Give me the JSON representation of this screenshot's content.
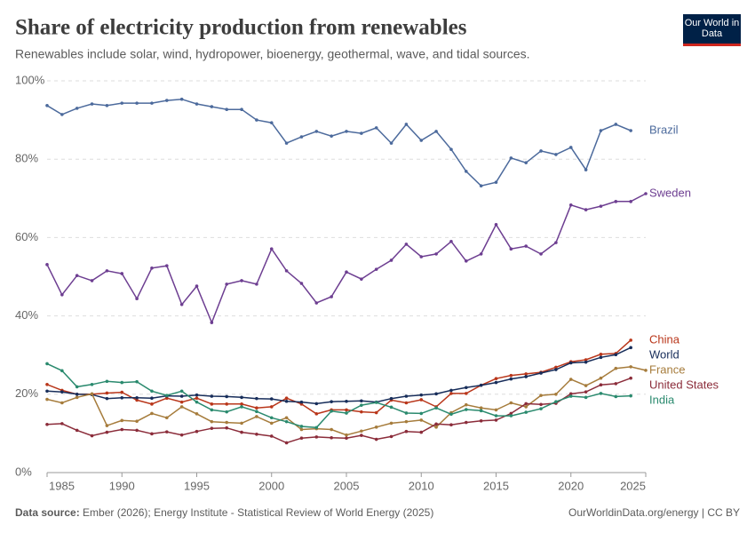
{
  "chart_data": {
    "type": "line",
    "title": "Share of electricity production from renewables",
    "subtitle": "Renewables include solar, wind, hydropower, bioenergy, geothermal, wave, and tidal sources.",
    "logo": "Our World in Data",
    "source_label": "Data source:",
    "source": "Ember (2026); Energy Institute - Statistical Review of World Energy (2025)",
    "footer_right": "OurWorldinData.org/energy | CC BY",
    "x": [
      1985,
      1986,
      1987,
      1988,
      1989,
      1990,
      1991,
      1992,
      1993,
      1994,
      1995,
      1996,
      1997,
      1998,
      1999,
      2000,
      2001,
      2002,
      2003,
      2004,
      2005,
      2006,
      2007,
      2008,
      2009,
      2010,
      2011,
      2012,
      2013,
      2014,
      2015,
      2016,
      2017,
      2018,
      2019,
      2020,
      2021,
      2022,
      2023,
      2024,
      2025
    ],
    "xlim": [
      1985,
      2025
    ],
    "xticks": [
      1985,
      1990,
      1995,
      2000,
      2005,
      2010,
      2015,
      2020,
      2025
    ],
    "ylim": [
      0,
      100
    ],
    "yticks": [
      {
        "value": 0,
        "label": "0%"
      },
      {
        "value": 20,
        "label": "20%"
      },
      {
        "value": 40,
        "label": "40%"
      },
      {
        "value": 60,
        "label": "60%"
      },
      {
        "value": 80,
        "label": "80%"
      },
      {
        "value": 100,
        "label": "100%"
      }
    ],
    "grid": true,
    "series": [
      {
        "name": "Brazil",
        "color": "#4c6a9c",
        "values": [
          93.7,
          91.4,
          93.0,
          94.1,
          93.7,
          94.3,
          94.3,
          94.3,
          95.0,
          95.3,
          94.1,
          93.4,
          92.7,
          92.7,
          90.0,
          89.3,
          84.1,
          85.7,
          87.1,
          85.9,
          87.1,
          86.6,
          88.0,
          84.1,
          88.9,
          84.8,
          87.1,
          82.5,
          76.9,
          73.2,
          74.1,
          80.3,
          79.1,
          82.1,
          81.2,
          83.0,
          77.3,
          87.3,
          88.9,
          87.3,
          null
        ]
      },
      {
        "name": "Sweden",
        "color": "#6d3e91",
        "values": [
          53.1,
          45.4,
          50.3,
          49.0,
          51.5,
          50.8,
          44.4,
          52.2,
          52.8,
          42.9,
          47.6,
          38.3,
          48.1,
          49.0,
          48.1,
          57.1,
          51.5,
          48.3,
          43.3,
          44.9,
          51.2,
          49.4,
          51.9,
          54.2,
          58.3,
          55.1,
          55.8,
          59.0,
          54.0,
          55.8,
          63.3,
          57.1,
          57.8,
          55.8,
          58.7,
          68.3,
          67.1,
          68.0,
          69.2,
          69.2,
          71.2
        ]
      },
      {
        "name": "China",
        "color": "#b9361a",
        "values": [
          22.5,
          21,
          20,
          20,
          20.3,
          20.5,
          18.5,
          17.5,
          19,
          18,
          19,
          17.5,
          17.5,
          17.5,
          16.5,
          16.8,
          19,
          17.5,
          15,
          16,
          16,
          15.5,
          15.3,
          18.5,
          17.8,
          18.6,
          16.8,
          20.2,
          20.2,
          22.3,
          24,
          24.8,
          25.2,
          25.6,
          26.9,
          28.3,
          28.8,
          30.2,
          30.4,
          33.8,
          null
        ]
      },
      {
        "name": "World",
        "color": "#172d5a",
        "values": [
          20.8,
          20.6,
          20,
          19.9,
          18.9,
          19.1,
          19.1,
          19,
          19.6,
          19.5,
          19.8,
          19.5,
          19.4,
          19.2,
          18.9,
          18.8,
          18.2,
          18,
          17.6,
          18.1,
          18.2,
          18.3,
          18.0,
          18.9,
          19.5,
          19.8,
          20.1,
          21,
          21.7,
          22.3,
          23,
          23.9,
          24.5,
          25.4,
          26.3,
          28,
          28.2,
          29.4,
          30.1,
          31.9,
          null
        ]
      },
      {
        "name": "France",
        "color": "#a67c3c",
        "values": [
          18.7,
          17.8,
          19.2,
          20.1,
          12,
          13.3,
          13.1,
          15.1,
          14,
          16.8,
          15,
          13,
          12.8,
          12.6,
          14.3,
          12.6,
          14,
          11,
          11.2,
          11,
          9.6,
          10.6,
          11.6,
          12.6,
          13,
          13.4,
          11.6,
          15.3,
          17.3,
          16.5,
          16,
          17.8,
          16.8,
          19.7,
          20,
          23.8,
          22.2,
          24.1,
          26.6,
          27,
          26.1
        ]
      },
      {
        "name": "United States",
        "color": "#8b2c3a",
        "values": [
          12.3,
          12.5,
          10.8,
          9.4,
          10.3,
          11,
          10.8,
          9.9,
          10.4,
          9.6,
          10.5,
          11.3,
          11.4,
          10.3,
          9.8,
          9.3,
          7.6,
          8.8,
          9.1,
          8.9,
          8.8,
          9.5,
          8.5,
          9.2,
          10.5,
          10.3,
          12.4,
          12.2,
          12.8,
          13.2,
          13.4,
          15.1,
          17.6,
          17.4,
          17.7,
          20.1,
          20.6,
          22.4,
          22.7,
          24.1,
          null
        ]
      },
      {
        "name": "India",
        "color": "#2a8a6e",
        "values": [
          27.8,
          26,
          21.9,
          22.5,
          23.3,
          23,
          23.2,
          20.8,
          19.7,
          20.8,
          18,
          16,
          15.5,
          16.8,
          15.6,
          14,
          13,
          11.8,
          11.5,
          15.7,
          15.2,
          17.2,
          17.9,
          16.7,
          15.2,
          15.1,
          16.5,
          14.9,
          16.1,
          15.8,
          14.5,
          14.5,
          15.4,
          16.3,
          18.1,
          19.5,
          19.2,
          20.2,
          19.4,
          19.6,
          null
        ]
      }
    ]
  }
}
